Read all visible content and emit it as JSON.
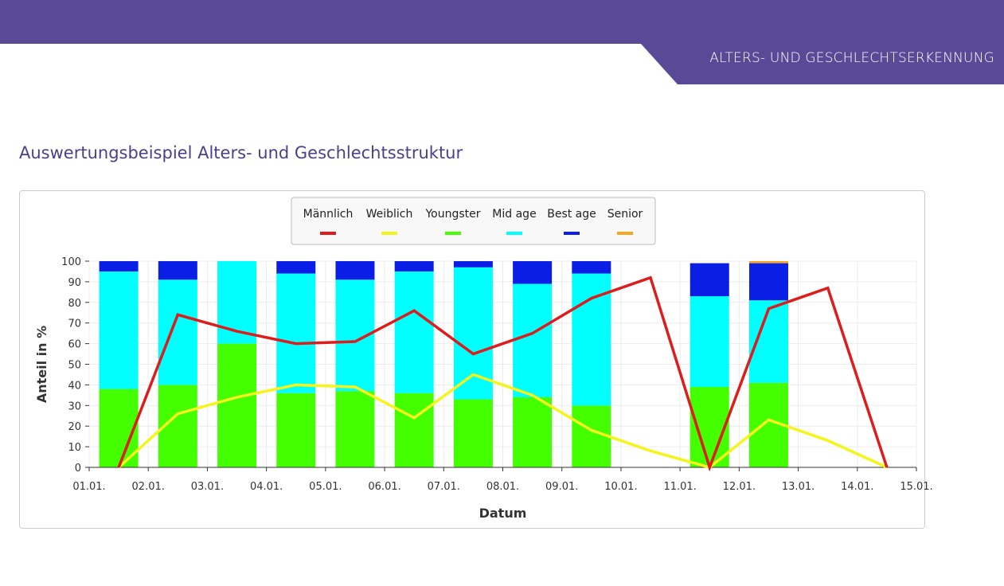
{
  "header": {
    "banner": "ALTERS- UND GESCHLECHTSERKENNUNG"
  },
  "section_title": "Auswertungsbeispiel Alters- und Geschlechtsstruktur",
  "colors": {
    "header_bg": "#594a98",
    "title": "#4a3f8f",
    "maennlich": "#dd1c1c",
    "weiblich": "#f5f51c",
    "youngster": "#44ff00",
    "mid_age": "#00ffff",
    "best_age": "#0a1ee6",
    "senior": "#f5a623"
  },
  "chart_data": {
    "type": "bar",
    "xlabel": "Datum",
    "ylabel": "Anteil in %",
    "ylim": [
      0,
      100
    ],
    "yticks": [
      0,
      10,
      20,
      30,
      40,
      50,
      60,
      70,
      80,
      90,
      100
    ],
    "xticks": [
      "01.01.",
      "02.01.",
      "03.01.",
      "04.01.",
      "05.01.",
      "06.01.",
      "07.01.",
      "08.01.",
      "09.01.",
      "10.01.",
      "11.01.",
      "12.01.",
      "13.01.",
      "14.01.",
      "15.01."
    ],
    "grid": true,
    "legend": "top-center",
    "legend_entries": [
      "Männlich",
      "Weiblich",
      "Youngster",
      "Mid age",
      "Best age",
      "Senior"
    ],
    "categories": [
      "01.01.",
      "02.01.",
      "03.01.",
      "04.01.",
      "05.01.",
      "06.01.",
      "07.01.",
      "08.01.",
      "09.01.",
      "10.01.",
      "11.01.",
      "12.01.",
      "13.01."
    ],
    "stacked_series": [
      {
        "name": "Youngster",
        "values": [
          38,
          40,
          60,
          36,
          37,
          36,
          33,
          34,
          30,
          0,
          39,
          41,
          0
        ]
      },
      {
        "name": "Mid age",
        "values": [
          57,
          51,
          40,
          58,
          54,
          59,
          64,
          55,
          64,
          0,
          44,
          40,
          0
        ]
      },
      {
        "name": "Best age",
        "values": [
          5,
          9,
          0,
          6,
          9,
          5,
          3,
          11,
          6,
          0,
          16,
          18,
          0
        ]
      },
      {
        "name": "Senior",
        "values": [
          0,
          0,
          0,
          0,
          0,
          0,
          0,
          0,
          0,
          0,
          0,
          1,
          0
        ]
      }
    ],
    "line_series": [
      {
        "name": "Männlich",
        "x": [
          "01.01.",
          "02.01.",
          "03.01.",
          "04.01.",
          "05.01.",
          "06.01.",
          "07.01.",
          "08.01.",
          "09.01.",
          "10.01.",
          "11.01.",
          "12.01.",
          "13.01.",
          "14.01."
        ],
        "values": [
          0,
          74,
          66,
          60,
          61,
          76,
          55,
          65,
          82,
          92,
          0,
          77,
          87,
          0
        ]
      },
      {
        "name": "Weiblich",
        "x": [
          "01.01.",
          "02.01.",
          "03.01.",
          "04.01.",
          "05.01.",
          "06.01.",
          "07.01.",
          "08.01.",
          "09.01.",
          "10.01.",
          "11.01.",
          "12.01.",
          "13.01.",
          "14.01."
        ],
        "values": [
          0,
          26,
          34,
          40,
          39,
          24,
          45,
          35,
          18,
          8,
          0,
          23,
          13,
          0
        ]
      }
    ]
  }
}
